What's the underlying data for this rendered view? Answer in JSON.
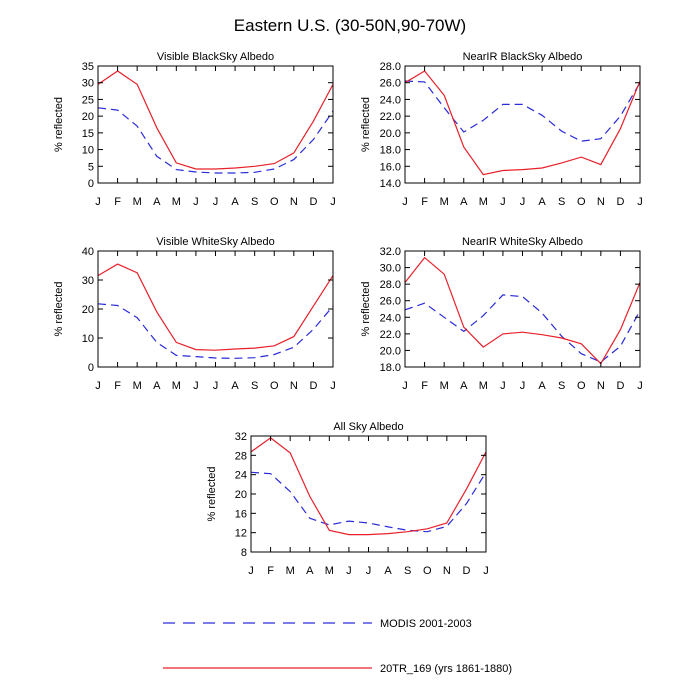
{
  "figure": {
    "title": "Eastern U.S. (30-50N,90-70W)"
  },
  "colors": {
    "modis": "#2b2bd9",
    "model": "#e8202a"
  },
  "legend": {
    "placement": "bottom-center",
    "entries": [
      {
        "series": "MODIS 2001-2003",
        "style": "dashed",
        "color": "#2b2bd9"
      },
      {
        "series": "20TR_169 (yrs 1861-1880)",
        "style": "solid",
        "color": "#e8202a"
      }
    ]
  },
  "chart_data": [
    {
      "type": "line",
      "title": "Visible BlackSky Albedo",
      "xlabel": "",
      "ylabel": "% reflected",
      "categories": [
        "J",
        "F",
        "M",
        "A",
        "M",
        "J",
        "J",
        "A",
        "S",
        "O",
        "N",
        "D",
        "J"
      ],
      "ylim": [
        0,
        35
      ],
      "yticks": [
        "0",
        "5",
        "10",
        "15",
        "20",
        "25",
        "30",
        "35"
      ],
      "series": [
        {
          "name": "MODIS 2001-2003",
          "values": [
            22.5,
            21.8,
            17,
            8,
            4,
            3.3,
            3,
            3,
            3.2,
            4.2,
            7,
            13,
            21.5
          ]
        },
        {
          "name": "20TR_169 (yrs 1861-1880)",
          "values": [
            29.5,
            33.5,
            29.5,
            16.5,
            6,
            4.2,
            4.2,
            4.5,
            5,
            5.8,
            9,
            18.5,
            29.5
          ]
        }
      ]
    },
    {
      "type": "line",
      "title": "NearIR BlackSky Albedo",
      "xlabel": "",
      "ylabel": "% reflected",
      "categories": [
        "J",
        "F",
        "M",
        "A",
        "M",
        "J",
        "J",
        "A",
        "S",
        "O",
        "N",
        "D",
        "J"
      ],
      "ylim": [
        14,
        28
      ],
      "yticks": [
        "14.0",
        "16.0",
        "18.0",
        "20.0",
        "22.0",
        "24.0",
        "26.0",
        "28.0"
      ],
      "series": [
        {
          "name": "MODIS 2001-2003",
          "values": [
            26.2,
            26.1,
            23,
            20.1,
            21.5,
            23.4,
            23.4,
            22.1,
            20.2,
            19,
            19.3,
            22,
            26
          ]
        },
        {
          "name": "20TR_169 (yrs 1861-1880)",
          "values": [
            26,
            27.4,
            24.5,
            18.3,
            15,
            15.5,
            15.6,
            15.8,
            16.4,
            17.1,
            16.2,
            20.5,
            26.2
          ]
        }
      ]
    },
    {
      "type": "line",
      "title": "Visible WhiteSky Albedo",
      "xlabel": "",
      "ylabel": "% reflected",
      "categories": [
        "J",
        "F",
        "M",
        "A",
        "M",
        "J",
        "J",
        "A",
        "S",
        "O",
        "N",
        "D",
        "J"
      ],
      "ylim": [
        0,
        40
      ],
      "yticks": [
        "0",
        "10",
        "20",
        "30",
        "40"
      ],
      "series": [
        {
          "name": "MODIS 2001-2003",
          "values": [
            21.8,
            21.2,
            17,
            8.5,
            4,
            3.6,
            3.1,
            3,
            3.2,
            4.3,
            6.8,
            13,
            21
          ]
        },
        {
          "name": "20TR_169 (yrs 1861-1880)",
          "values": [
            31.5,
            35.5,
            32.5,
            19,
            8.5,
            6,
            5.8,
            6.2,
            6.5,
            7.3,
            10.5,
            21,
            31.5
          ]
        }
      ]
    },
    {
      "type": "line",
      "title": "NearIR WhiteSky Albedo",
      "xlabel": "",
      "ylabel": "% reflected",
      "categories": [
        "J",
        "F",
        "M",
        "A",
        "M",
        "J",
        "J",
        "A",
        "S",
        "O",
        "N",
        "D",
        "J"
      ],
      "ylim": [
        18,
        32
      ],
      "yticks": [
        "18.0",
        "20.0",
        "22.0",
        "24.0",
        "26.0",
        "28.0",
        "30.0",
        "32.0"
      ],
      "series": [
        {
          "name": "MODIS 2001-2003",
          "values": [
            24.9,
            25.7,
            24,
            22.3,
            24.2,
            26.7,
            26.5,
            24.5,
            21.7,
            19.6,
            18.6,
            20.5,
            24.8
          ]
        },
        {
          "name": "20TR_169 (yrs 1861-1880)",
          "values": [
            28.2,
            31.2,
            29.2,
            22.8,
            20.4,
            22,
            22.2,
            21.9,
            21.5,
            20.8,
            18.4,
            22.5,
            28.2
          ]
        }
      ]
    },
    {
      "type": "line",
      "title": "All Sky Albedo",
      "xlabel": "",
      "ylabel": "% reflected",
      "categories": [
        "J",
        "F",
        "M",
        "A",
        "M",
        "J",
        "J",
        "A",
        "S",
        "O",
        "N",
        "D",
        "J"
      ],
      "ylim": [
        8,
        32
      ],
      "yticks": [
        "8",
        "12",
        "16",
        "20",
        "24",
        "28",
        "32"
      ],
      "series": [
        {
          "name": "MODIS 2001-2003",
          "values": [
            24.5,
            24.2,
            20.5,
            15,
            13.6,
            14.4,
            14,
            13.2,
            12.5,
            12.2,
            13.3,
            18,
            24.5
          ]
        },
        {
          "name": "20TR_169 (yrs 1861-1880)",
          "values": [
            28.7,
            31.6,
            28.5,
            19.5,
            12.5,
            11.6,
            11.6,
            11.8,
            12.2,
            12.8,
            14,
            21,
            28.7
          ]
        }
      ]
    }
  ]
}
